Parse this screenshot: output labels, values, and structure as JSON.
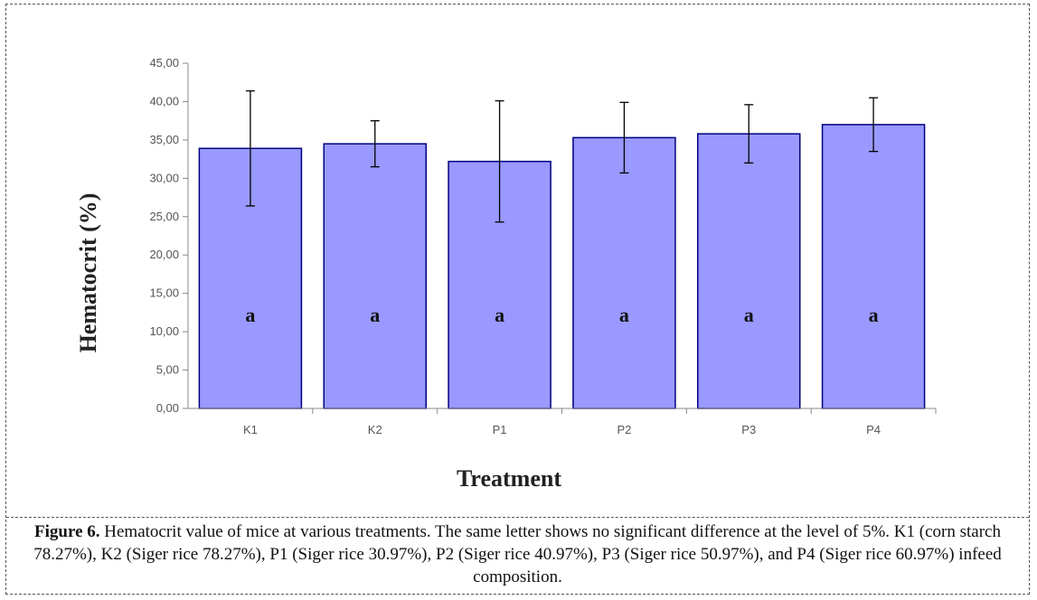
{
  "chart_data": {
    "type": "bar",
    "categories": [
      "K1",
      "K2",
      "P1",
      "P2",
      "P3",
      "P4"
    ],
    "values": [
      33.9,
      34.5,
      32.2,
      35.3,
      35.8,
      37.0
    ],
    "error": [
      7.5,
      3.0,
      7.9,
      4.6,
      3.8,
      3.5
    ],
    "letters": [
      "a",
      "a",
      "a",
      "a",
      "a",
      "a"
    ],
    "title": "",
    "xlabel": "Treatment",
    "ylabel": "Hematocrit (%)",
    "ylim": [
      0,
      45
    ],
    "yticks": [
      "0,00",
      "5,00",
      "10,00",
      "15,00",
      "20,00",
      "25,00",
      "30,00",
      "35,00",
      "40,00",
      "45,00"
    ],
    "grid": false,
    "bar_color": "#9999ff",
    "bar_border": "#000080"
  },
  "caption": {
    "label": "Figure 6.",
    "text": " Hematocrit value of mice at various treatments. The same letter shows no significant difference at the level of 5%. K1 (corn starch 78.27%), K2 (Siger rice 78.27%), P1 (Siger rice 30.97%), P2 (Siger rice 40.97%), P3 (Siger rice 50.97%), and P4 (Siger rice 60.97%) infeed composition."
  }
}
